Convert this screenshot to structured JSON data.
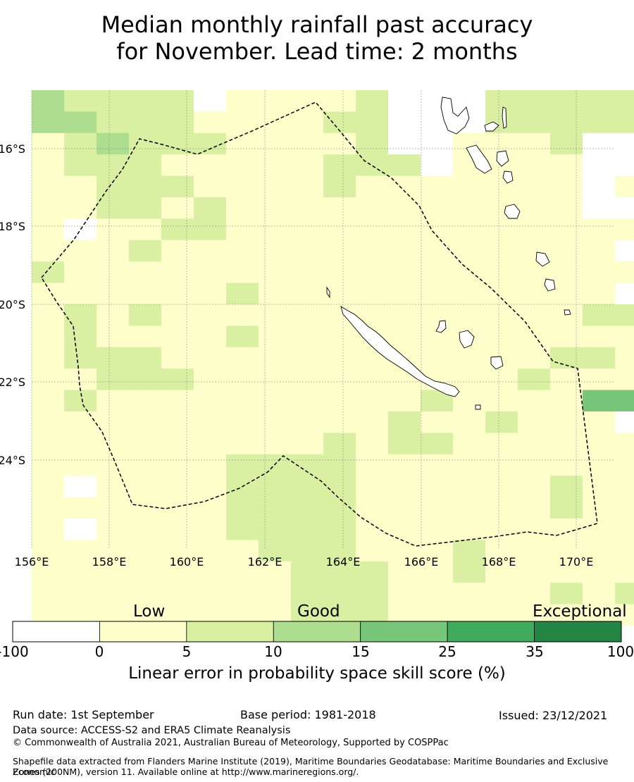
{
  "title": {
    "line1": "Median monthly rainfall past accuracy",
    "line2": "for November. Lead time: 2 months"
  },
  "map": {
    "lon_ticks": [
      "156°E",
      "158°E",
      "160°E",
      "162°E",
      "164°E",
      "166°E",
      "168°E",
      "170°E"
    ],
    "lat_ticks": [
      "16°S",
      "18°S",
      "20°S",
      "22°S",
      "24°S"
    ],
    "lon_range": [
      156,
      171
    ],
    "lat_range": [
      -14.5,
      -26.3
    ],
    "grid": true,
    "boundary": "dashed EEZ outline",
    "land": [
      "New Caledonia",
      "Vanuatu",
      "Loyalty Islands"
    ]
  },
  "colorbar": {
    "categories": [
      "Low",
      "Good",
      "Exceptional"
    ],
    "ticks": [
      "-100",
      "0",
      "5",
      "10",
      "15",
      "25",
      "35",
      "100"
    ],
    "colors": [
      "#ffffff",
      "#ffffcc",
      "#d9f0a3",
      "#addd8e",
      "#78c679",
      "#41ab5d",
      "#238443"
    ],
    "label": "Linear error in probability space skill score (%)"
  },
  "footer": {
    "run_date": "Run date: 1st September",
    "base_period": "Base period: 1981-2018",
    "issued": "Issued: 23/12/2021",
    "data_source": "Data source: ACCESS-S2 and ERA5 Climate Reanalysis",
    "copyright": "© Commonwealth of Australia 2021, Australian Bureau of Meteorology, Supported by COSPPac",
    "shapefile_line1": "Shapefile data extracted from Flanders Marine Institute (2019), Maritime Boundaries Geodatabase: Maritime Boundaries and Exclusive Economic",
    "shapefile_line2": "Zones (200NM), version 11. Available online at http://www.marineregions.org/."
  }
}
